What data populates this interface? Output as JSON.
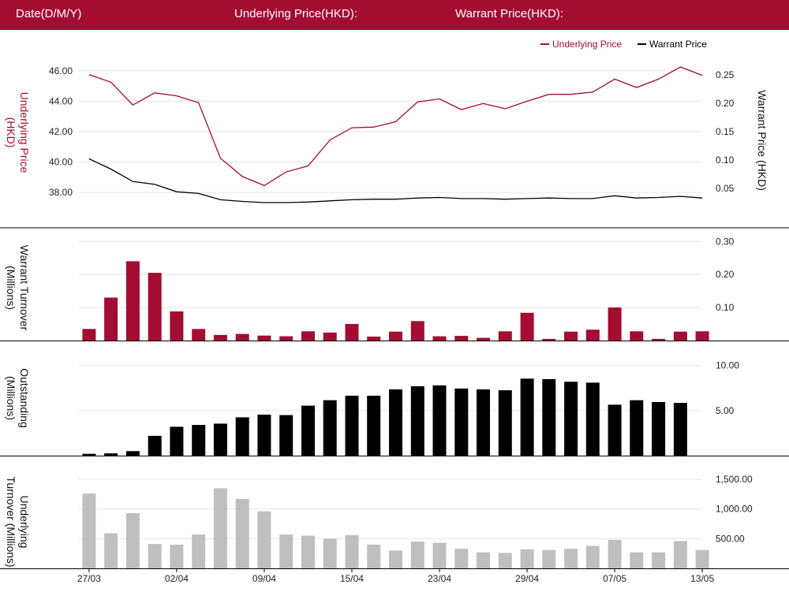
{
  "header": {
    "date_label": "Date(D/M/Y)",
    "underlying_label": "Underlying Price(HKD):",
    "warrant_label": "Warrant Price(HKD):"
  },
  "colors": {
    "header_bg": "#a30d32",
    "underlying": "#a30d32",
    "warrant": "#000000",
    "underlying_turnover": "#bfbfbf",
    "grid": "#e6e6e6"
  },
  "chart_data": [
    {
      "type": "line",
      "legend": [
        "Underlying Price",
        "Warrant Price"
      ],
      "legend_position": "top-right",
      "ylabel_left": "Underlying Price (HKD)",
      "ylabel_right": "Warrant  Price (HKD)",
      "left_ticks": [
        "46.00",
        "44.00",
        "42.00",
        "40.00",
        "38.00"
      ],
      "right_ticks": [
        "0.25",
        "0.20",
        "0.15",
        "0.10",
        "0.05"
      ],
      "ylim_left": [
        36.4,
        46.3
      ],
      "ylim_right": [
        0.0,
        0.265
      ],
      "series": [
        {
          "name": "Underlying Price",
          "axis": "left",
          "values": [
            45.75,
            45.25,
            43.75,
            44.55,
            44.35,
            43.9,
            40.25,
            39.05,
            38.45,
            39.35,
            39.75,
            41.45,
            42.25,
            42.3,
            42.65,
            43.95,
            44.15,
            43.45,
            43.85,
            43.5,
            44.0,
            44.45,
            44.45,
            44.6,
            45.45,
            44.9,
            45.45,
            46.25,
            45.7
          ]
        },
        {
          "name": "Warrant Price",
          "axis": "right",
          "values": [
            0.102,
            0.084,
            0.062,
            0.057,
            0.044,
            0.041,
            0.03,
            0.027,
            0.025,
            0.025,
            0.026,
            0.028,
            0.03,
            0.031,
            0.031,
            0.033,
            0.034,
            0.032,
            0.032,
            0.031,
            0.032,
            0.033,
            0.032,
            0.032,
            0.037,
            0.033,
            0.034,
            0.036,
            0.033
          ]
        }
      ]
    },
    {
      "type": "bar",
      "ylabel": "Warrant  Turnover (Millions)",
      "ticks": [
        "0.30",
        "0.20",
        "0.10"
      ],
      "ylim": [
        0,
        0.315
      ],
      "values": [
        0.035,
        0.13,
        0.24,
        0.205,
        0.088,
        0.035,
        0.017,
        0.02,
        0.015,
        0.013,
        0.028,
        0.024,
        0.05,
        0.012,
        0.027,
        0.059,
        0.013,
        0.014,
        0.008,
        0.028,
        0.084,
        0.005,
        0.027,
        0.033,
        0.1,
        0.028,
        0.005,
        0.027,
        0.028
      ]
    },
    {
      "type": "bar",
      "ylabel": "Outstanding (Millions)",
      "ticks": [
        "10.00",
        "5.00"
      ],
      "ylim": [
        0,
        10.5
      ],
      "values": [
        0.2,
        0.25,
        0.5,
        2.2,
        3.2,
        3.4,
        3.55,
        4.25,
        4.55,
        4.5,
        5.55,
        6.15,
        6.65,
        6.65,
        7.35,
        7.7,
        7.8,
        7.45,
        7.35,
        7.25,
        8.55,
        8.5,
        8.2,
        8.1,
        5.65,
        6.15,
        5.95,
        5.85,
        0
      ]
    },
    {
      "type": "bar",
      "ylabel": "Underlying Turnover (Millions)",
      "ticks": [
        "1,500.00",
        "1,000.00",
        "500.00"
      ],
      "ylim": [
        0,
        1740
      ],
      "x_tick_labels": [
        "27/03",
        "02/04",
        "09/04",
        "15/04",
        "23/04",
        "29/04",
        "07/05",
        "13/05"
      ],
      "values": [
        1260,
        590,
        930,
        410,
        400,
        570,
        1350,
        1170,
        960,
        570,
        550,
        500,
        560,
        400,
        300,
        450,
        430,
        330,
        270,
        260,
        320,
        310,
        330,
        380,
        480,
        270,
        270,
        460,
        310
      ]
    }
  ]
}
